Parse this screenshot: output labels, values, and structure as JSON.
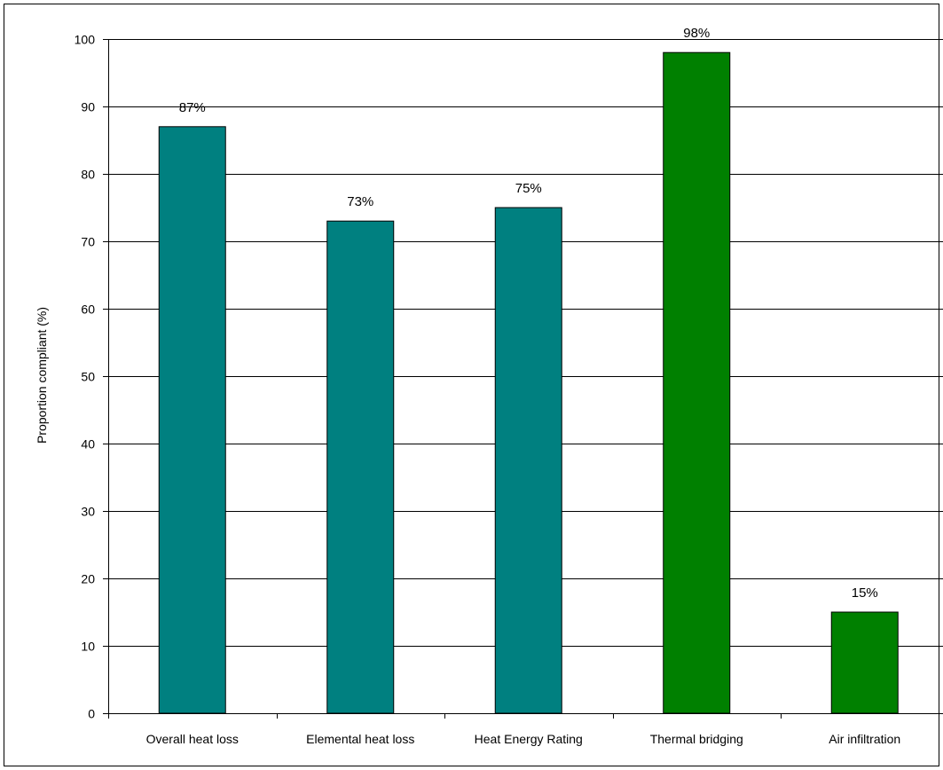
{
  "chart_data": {
    "type": "bar",
    "title": "",
    "xlabel": "",
    "ylabel": "Proportion compliant (%)",
    "ylim": [
      0,
      100
    ],
    "yticks": [
      0,
      10,
      20,
      30,
      40,
      50,
      60,
      70,
      80,
      90,
      100
    ],
    "grid": "horizontal",
    "categories": [
      "Overall heat loss",
      "Elemental heat loss",
      "Heat Energy Rating",
      "Thermal bridging",
      "Air infiltration"
    ],
    "values": [
      87,
      73,
      75,
      98,
      15
    ],
    "data_labels": [
      "87%",
      "73%",
      "75%",
      "98%",
      "15%"
    ],
    "bar_colors": [
      "#008080",
      "#008080",
      "#008080",
      "#008000",
      "#008000"
    ]
  }
}
